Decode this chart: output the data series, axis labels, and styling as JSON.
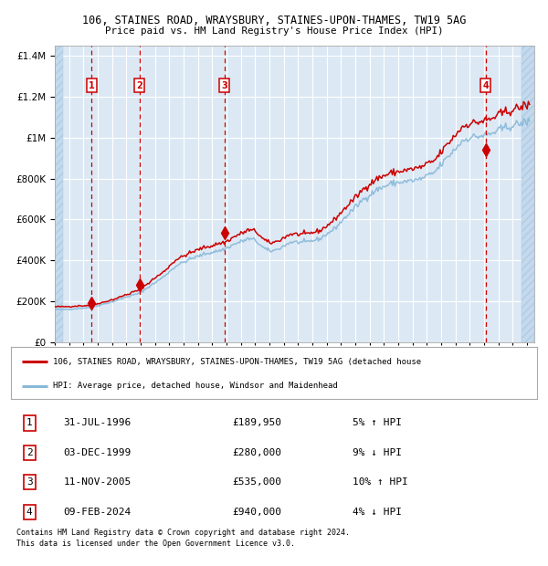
{
  "title_line1": "106, STAINES ROAD, WRAYSBURY, STAINES-UPON-THAMES, TW19 5AG",
  "title_line2": "Price paid vs. HM Land Registry's House Price Index (HPI)",
  "sales": [
    {
      "label": "1",
      "date_str": "31-JUL-1996",
      "year": 1996.58,
      "price": 189950,
      "pct": "5%",
      "dir": "↑"
    },
    {
      "label": "2",
      "date_str": "03-DEC-1999",
      "year": 1999.92,
      "price": 280000,
      "pct": "9%",
      "dir": "↓"
    },
    {
      "label": "3",
      "date_str": "11-NOV-2005",
      "year": 2005.86,
      "price": 535000,
      "pct": "10%",
      "dir": "↑"
    },
    {
      "label": "4",
      "date_str": "09-FEB-2024",
      "year": 2024.11,
      "price": 940000,
      "pct": "4%",
      "dir": "↓"
    }
  ],
  "legend_property": "106, STAINES ROAD, WRAYSBURY, STAINES-UPON-THAMES, TW19 5AG (detached house",
  "legend_hpi": "HPI: Average price, detached house, Windsor and Maidenhead",
  "footnote1": "Contains HM Land Registry data © Crown copyright and database right 2024.",
  "footnote2": "This data is licensed under the Open Government Licence v3.0.",
  "ylim": [
    0,
    1450000
  ],
  "xlim_start": 1994.0,
  "xlim_end": 2027.5,
  "background_color": "#dce9f5",
  "hatch_color": "#c4d9ed",
  "grid_color": "#ffffff",
  "property_color": "#cc0000",
  "hpi_color": "#88b8d8",
  "vline_color": "#cc0000",
  "marker_color": "#cc0000",
  "fig_width": 6.0,
  "fig_height": 6.2,
  "dpi": 100
}
